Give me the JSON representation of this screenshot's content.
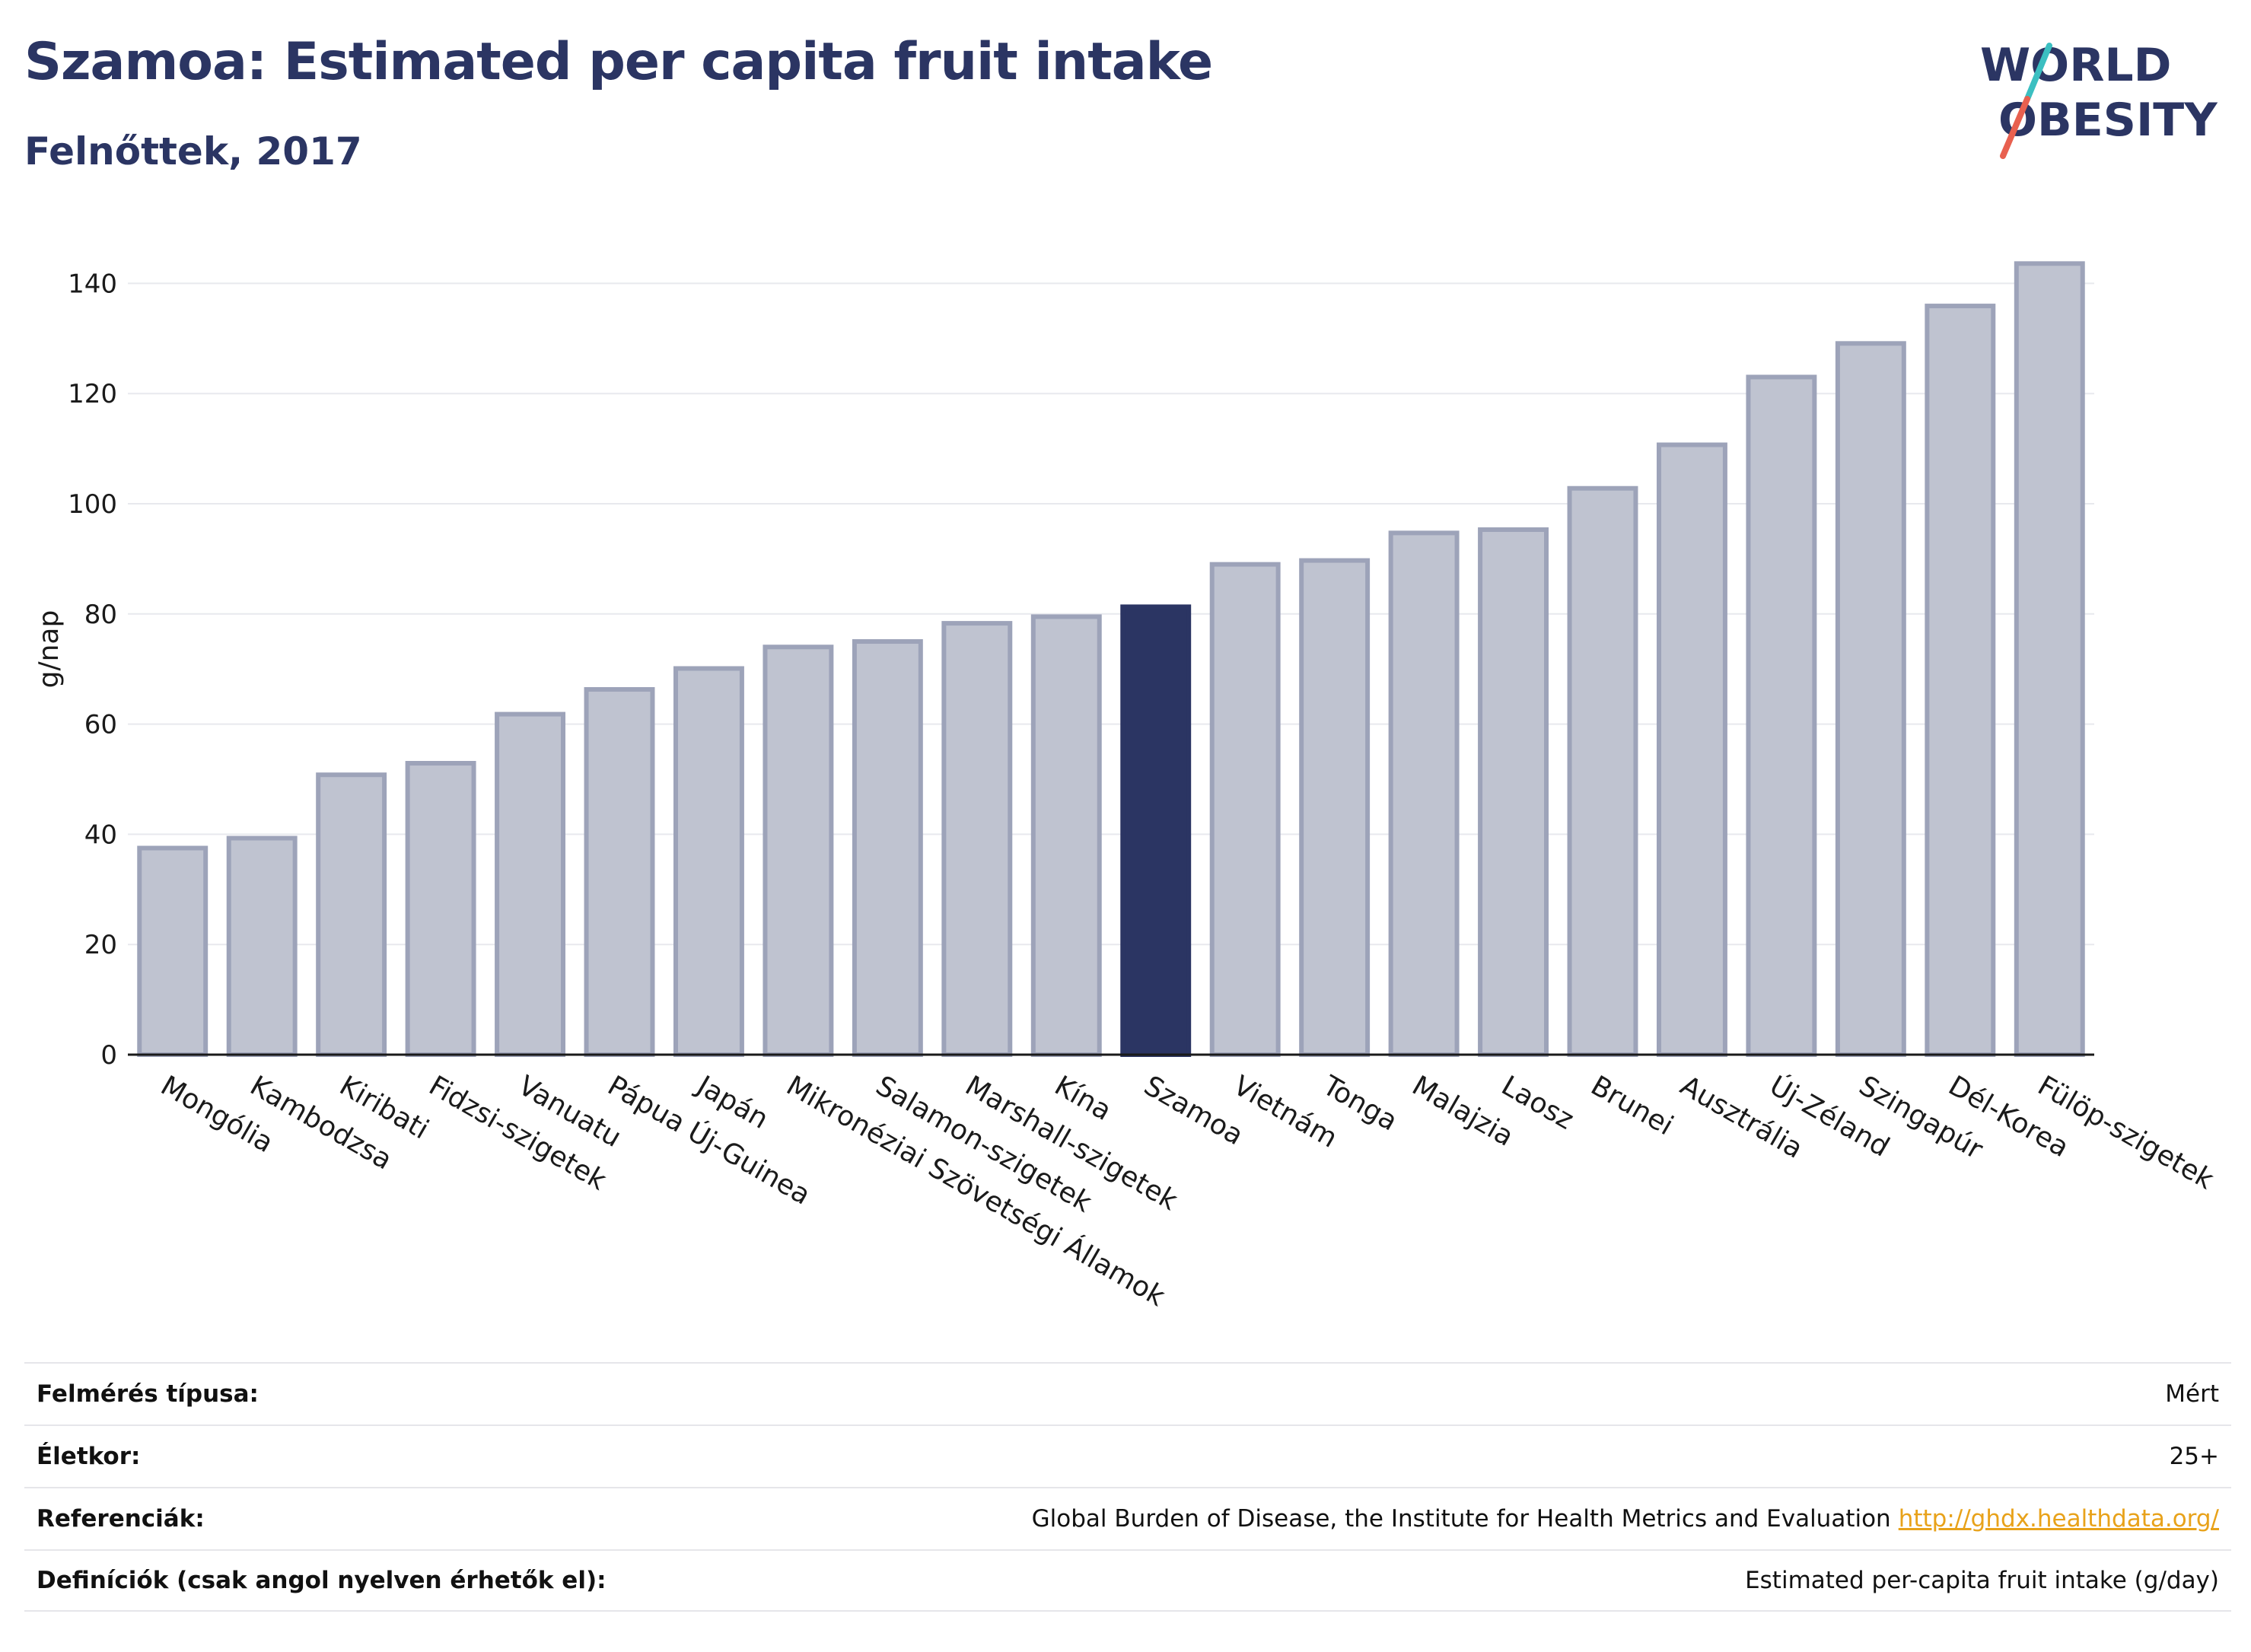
{
  "header": {
    "title": "Szamoa: Estimated per capita fruit intake",
    "subtitle": "Felnőttek, 2017"
  },
  "logo": {
    "line1": "WORLD",
    "line2": "OBESITY",
    "colors": {
      "text": "#2b3563",
      "slash_teal": "#3bbfc1",
      "slash_red": "#e8604f"
    }
  },
  "chart_data": {
    "type": "bar",
    "ylabel": "g/nap",
    "ylim": [
      0,
      150
    ],
    "yticks": [
      0,
      20,
      40,
      60,
      80,
      100,
      120,
      140
    ],
    "grid": true,
    "categories": [
      "Mongólia",
      "Kambodzsa",
      "Kiribati",
      "Fidzsi-szigetek",
      "Vanuatu",
      "Pápua Új-Guinea",
      "Japán",
      "Mikronéziai Szövetségi Államok",
      "Salamon-szigetek",
      "Marshall-szigetek",
      "Kína",
      "Szamoa",
      "Vietnám",
      "Tonga",
      "Malajzia",
      "Laosz",
      "Brunei",
      "Ausztrália",
      "Új-Zéland",
      "Szingapúr",
      "Dél-Korea",
      "Fülöp-szigetek"
    ],
    "values": [
      37.5,
      39.3,
      50.8,
      52.9,
      61.8,
      66.3,
      70.1,
      74.0,
      75.0,
      78.3,
      79.5,
      81.3,
      89.0,
      89.7,
      94.7,
      95.3,
      102.8,
      110.7,
      123.0,
      129.1,
      135.9,
      143.6
    ],
    "highlight": "Szamoa",
    "colors": {
      "bar": "#bfc3d0",
      "bar_edge": "#9da3b9",
      "highlight": "#2b3563"
    }
  },
  "info": {
    "rows": [
      {
        "label": "Felmérés típusa:",
        "value": "Mért"
      },
      {
        "label": "Életkor:",
        "value": "25+"
      },
      {
        "label": "Referenciák:",
        "value": "Global Burden of Disease, the Institute for Health Metrics and Evaluation",
        "link": "http://ghdx.healthdata.org/"
      },
      {
        "label": "Definíciók (csak angol nyelven érhetők el):",
        "value": "Estimated per-capita fruit intake (g/day)"
      }
    ]
  }
}
